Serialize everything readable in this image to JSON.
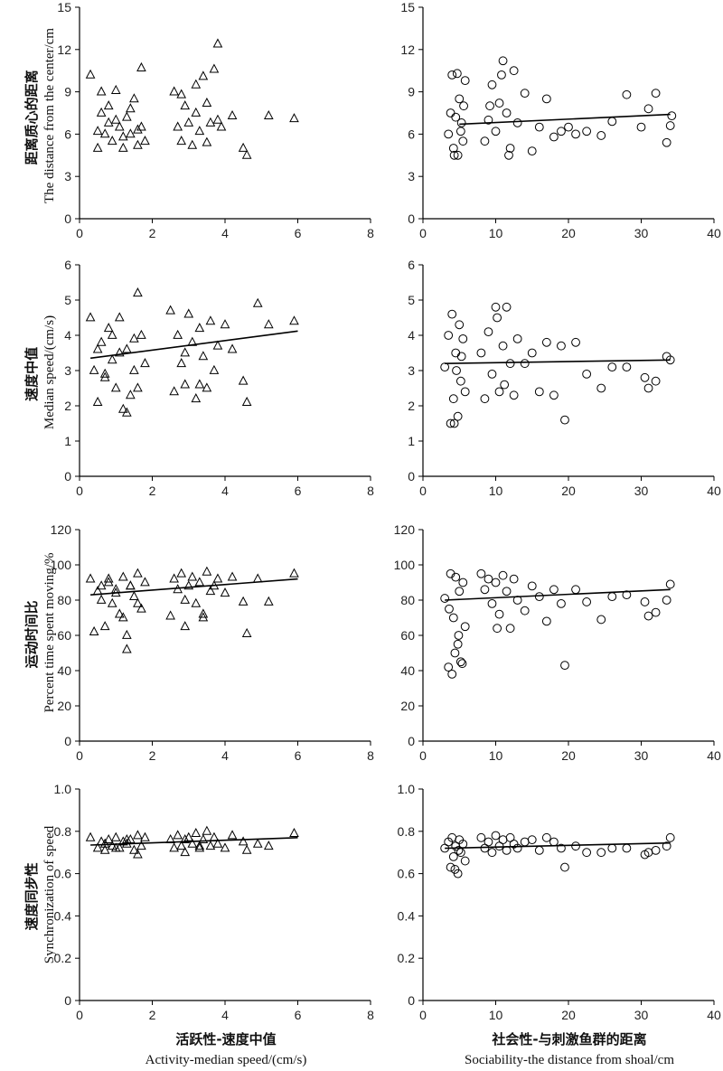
{
  "figure": {
    "xlabels": [
      {
        "zh": "活跃性-速度中值",
        "en": "Activity-median speed/(cm/s)"
      },
      {
        "zh": "社会性-与刺激鱼群的距离",
        "en": "Sociability-the distance from shoal/cm"
      }
    ],
    "ylabels": [
      {
        "zh": "距离质心的距离",
        "en": "The distance from the center/cm"
      },
      {
        "zh": "速度中值",
        "en": "Median speed/(cm/s)"
      },
      {
        "zh": "运动时间比",
        "en": "Percent time spent moving/%"
      },
      {
        "zh": "速度同步性",
        "en": "Synchronization of speed"
      }
    ]
  },
  "chart_data": [
    {
      "type": "scatter",
      "row": 0,
      "col": 0,
      "marker": "triangle",
      "xlim": [
        0,
        8
      ],
      "xticks": [
        "0",
        "2",
        "4",
        "6",
        "8"
      ],
      "ylim": [
        0,
        15
      ],
      "yticks": [
        "0",
        "3",
        "6",
        "9",
        "12",
        "15"
      ],
      "series": [
        {
          "x": [
            0.3,
            0.5,
            0.5,
            0.6,
            0.7,
            0.8,
            0.9,
            1.0,
            1.1,
            1.2,
            1.3,
            1.4,
            1.5,
            1.6,
            1.7,
            1.8,
            0.6,
            0.8,
            1.0,
            1.2,
            1.4,
            1.6,
            1.7,
            2.6,
            2.7,
            2.8,
            2.9,
            3.0,
            3.1,
            3.2,
            3.3,
            3.4,
            3.5,
            3.6,
            3.7,
            3.8,
            3.8,
            3.9,
            4.2,
            4.5,
            4.6,
            5.2,
            5.9,
            2.8,
            3.2,
            3.5
          ],
          "y": [
            10.2,
            6.2,
            5.0,
            7.5,
            6.0,
            8.0,
            5.5,
            7.0,
            6.5,
            5.8,
            7.2,
            6.0,
            8.5,
            6.3,
            10.7,
            5.5,
            9.0,
            6.8,
            9.1,
            5.0,
            7.8,
            5.2,
            6.5,
            9.0,
            6.5,
            5.5,
            8.0,
            6.8,
            5.2,
            7.5,
            6.2,
            10.1,
            8.2,
            6.8,
            10.6,
            12.4,
            7.0,
            6.5,
            7.3,
            5.0,
            4.5,
            7.3,
            7.1,
            8.8,
            9.5,
            5.4
          ]
        }
      ],
      "trend": null
    },
    {
      "type": "scatter",
      "row": 0,
      "col": 1,
      "marker": "circle",
      "xlim": [
        0,
        40
      ],
      "xticks": [
        "0",
        "10",
        "20",
        "30",
        "40"
      ],
      "ylim": [
        0,
        15
      ],
      "yticks": [
        "0",
        "3",
        "6",
        "9",
        "12",
        "15"
      ],
      "series": [
        {
          "x": [
            3.5,
            4.0,
            4.2,
            4.5,
            4.8,
            5.0,
            5.2,
            5.5,
            5.8,
            3.8,
            4.3,
            4.7,
            5.3,
            5.6,
            8.5,
            9.0,
            9.5,
            10.0,
            10.5,
            11.0,
            11.5,
            12.0,
            13.0,
            14.0,
            15.0,
            16.0,
            17.0,
            18.0,
            19.0,
            20.0,
            21.0,
            22.5,
            24.5,
            26.0,
            28.0,
            30.0,
            31.0,
            32.0,
            33.5,
            34.0,
            34.2,
            10.8,
            11.8,
            9.2,
            12.5
          ],
          "y": [
            6.0,
            10.2,
            5.0,
            7.2,
            4.5,
            8.5,
            6.2,
            5.5,
            9.8,
            7.5,
            4.5,
            10.3,
            6.8,
            8.0,
            5.5,
            7.0,
            9.5,
            6.2,
            8.2,
            11.2,
            7.5,
            5.0,
            6.8,
            8.9,
            4.8,
            6.5,
            8.5,
            5.8,
            6.2,
            6.5,
            6.0,
            6.2,
            5.9,
            6.9,
            8.8,
            6.5,
            7.8,
            8.9,
            5.4,
            6.6,
            7.3,
            10.2,
            4.5,
            8.0,
            10.5
          ]
        }
      ],
      "trend": {
        "x": [
          5,
          34
        ],
        "y": [
          6.7,
          7.4
        ]
      }
    },
    {
      "type": "scatter",
      "row": 1,
      "col": 0,
      "marker": "triangle",
      "xlim": [
        0,
        8
      ],
      "xticks": [
        "0",
        "2",
        "4",
        "6",
        "8"
      ],
      "ylim": [
        0,
        6
      ],
      "yticks": [
        "0",
        "1",
        "2",
        "3",
        "4",
        "5",
        "6"
      ],
      "series": [
        {
          "x": [
            0.3,
            0.4,
            0.5,
            0.6,
            0.7,
            0.8,
            0.9,
            1.0,
            1.1,
            1.2,
            1.3,
            1.4,
            1.5,
            1.6,
            1.7,
            1.8,
            0.5,
            0.7,
            0.9,
            1.1,
            1.3,
            1.5,
            1.6,
            2.5,
            2.6,
            2.7,
            2.8,
            2.9,
            3.0,
            3.1,
            3.2,
            3.3,
            3.4,
            3.5,
            3.6,
            3.7,
            3.8,
            4.0,
            4.2,
            4.5,
            4.6,
            4.9,
            5.2,
            5.9,
            2.9,
            3.3
          ],
          "y": [
            4.5,
            3.0,
            2.1,
            3.8,
            2.9,
            4.2,
            3.3,
            2.5,
            4.5,
            1.9,
            3.6,
            2.3,
            3.0,
            5.2,
            4.0,
            3.2,
            3.6,
            2.8,
            4.0,
            3.5,
            1.8,
            3.9,
            2.5,
            4.7,
            2.4,
            4.0,
            3.2,
            2.6,
            4.6,
            3.8,
            2.2,
            4.2,
            3.4,
            2.5,
            4.4,
            3.0,
            3.7,
            4.3,
            3.6,
            2.7,
            2.1,
            4.9,
            4.3,
            4.4,
            3.5,
            2.6
          ]
        }
      ],
      "trend": {
        "x": [
          0.3,
          6.0
        ],
        "y": [
          3.35,
          4.12
        ]
      }
    },
    {
      "type": "scatter",
      "row": 1,
      "col": 1,
      "marker": "circle",
      "xlim": [
        0,
        40
      ],
      "xticks": [
        "0",
        "10",
        "20",
        "30",
        "40"
      ],
      "ylim": [
        0,
        6
      ],
      "yticks": [
        "0",
        "1",
        "2",
        "3",
        "4",
        "5",
        "6"
      ],
      "series": [
        {
          "x": [
            3.0,
            3.5,
            3.8,
            4.0,
            4.2,
            4.5,
            4.8,
            5.0,
            5.2,
            5.5,
            5.8,
            4.3,
            4.6,
            5.3,
            8.0,
            8.5,
            9.0,
            9.5,
            10.0,
            10.5,
            11.0,
            11.5,
            12.0,
            12.5,
            13.0,
            14.0,
            15.0,
            16.0,
            17.0,
            18.0,
            19.0,
            19.5,
            21.0,
            22.5,
            24.5,
            26.0,
            28.0,
            30.5,
            31.0,
            32.0,
            33.5,
            34.0,
            10.2,
            11.2
          ],
          "y": [
            3.1,
            4.0,
            1.5,
            4.6,
            2.2,
            3.5,
            1.7,
            4.3,
            2.7,
            3.9,
            2.4,
            1.5,
            3.0,
            3.4,
            3.5,
            2.2,
            4.1,
            2.9,
            4.8,
            2.4,
            3.7,
            4.8,
            3.2,
            2.3,
            3.9,
            3.2,
            3.5,
            2.4,
            3.8,
            2.3,
            3.7,
            1.6,
            3.8,
            2.9,
            2.5,
            3.1,
            3.1,
            2.8,
            2.5,
            2.7,
            3.4,
            3.3,
            4.5,
            2.6
          ]
        }
      ],
      "trend": {
        "x": [
          3,
          34
        ],
        "y": [
          3.2,
          3.3
        ]
      }
    },
    {
      "type": "scatter",
      "row": 2,
      "col": 0,
      "marker": "triangle",
      "xlim": [
        0,
        8
      ],
      "xticks": [
        "0",
        "2",
        "4",
        "6",
        "8"
      ],
      "ylim": [
        0,
        120
      ],
      "yticks": [
        "0",
        "20",
        "40",
        "60",
        "80",
        "100",
        "120"
      ],
      "series": [
        {
          "x": [
            0.3,
            0.4,
            0.5,
            0.6,
            0.7,
            0.8,
            0.9,
            1.0,
            1.1,
            1.2,
            1.3,
            1.4,
            1.5,
            1.6,
            1.7,
            1.8,
            0.6,
            0.8,
            1.0,
            1.2,
            1.4,
            1.6,
            2.5,
            2.6,
            2.7,
            2.8,
            2.9,
            3.0,
            3.1,
            3.2,
            3.3,
            3.4,
            3.5,
            3.6,
            3.7,
            3.8,
            4.0,
            4.2,
            4.5,
            4.6,
            4.9,
            5.2,
            5.9,
            1.3,
            2.9,
            3.4
          ],
          "y": [
            92,
            62,
            85,
            88,
            65,
            90,
            78,
            86,
            72,
            93,
            60,
            88,
            82,
            95,
            75,
            90,
            80,
            92,
            84,
            70,
            88,
            78,
            71,
            92,
            86,
            95,
            65,
            88,
            93,
            78,
            90,
            72,
            96,
            85,
            88,
            92,
            84,
            93,
            79,
            61,
            92,
            79,
            95,
            52,
            80,
            70
          ]
        }
      ],
      "trend": {
        "x": [
          0.3,
          6.0
        ],
        "y": [
          83,
          92
        ]
      }
    },
    {
      "type": "scatter",
      "row": 2,
      "col": 1,
      "marker": "circle",
      "xlim": [
        0,
        40
      ],
      "xticks": [
        "0",
        "10",
        "20",
        "30",
        "40"
      ],
      "ylim": [
        0,
        120
      ],
      "yticks": [
        "0",
        "20",
        "40",
        "60",
        "80",
        "100",
        "120"
      ],
      "series": [
        {
          "x": [
            3.0,
            3.5,
            3.8,
            4.0,
            4.2,
            4.5,
            4.8,
            5.0,
            5.2,
            5.5,
            5.8,
            3.6,
            4.4,
            4.9,
            5.4,
            8.0,
            8.5,
            9.0,
            9.5,
            10.0,
            10.5,
            11.0,
            11.5,
            12.0,
            12.5,
            13.0,
            14.0,
            15.0,
            16.0,
            17.0,
            18.0,
            19.0,
            19.5,
            21.0,
            22.5,
            24.5,
            26.0,
            28.0,
            30.5,
            31.0,
            32.0,
            33.5,
            34.0,
            10.2
          ],
          "y": [
            81,
            42,
            95,
            38,
            70,
            93,
            55,
            85,
            45,
            90,
            65,
            75,
            50,
            60,
            44,
            95,
            86,
            92,
            78,
            90,
            72,
            94,
            85,
            64,
            92,
            80,
            74,
            88,
            82,
            68,
            86,
            78,
            43,
            86,
            79,
            69,
            82,
            83,
            79,
            71,
            73,
            80,
            89,
            64
          ]
        }
      ],
      "trend": {
        "x": [
          3,
          34
        ],
        "y": [
          80,
          86
        ]
      }
    },
    {
      "type": "scatter",
      "row": 3,
      "col": 0,
      "marker": "triangle",
      "xlim": [
        0,
        8
      ],
      "xticks": [
        "0",
        "2",
        "4",
        "6",
        "8"
      ],
      "ylim": [
        0,
        1.0
      ],
      "yticks": [
        "0",
        "0.2",
        "0.4",
        "0.6",
        "0.8",
        "1.0"
      ],
      "series": [
        {
          "x": [
            0.3,
            0.5,
            0.6,
            0.7,
            0.8,
            0.9,
            1.0,
            1.1,
            1.2,
            1.3,
            1.4,
            1.5,
            1.6,
            1.7,
            1.8,
            0.7,
            1.0,
            1.3,
            1.6,
            2.5,
            2.6,
            2.7,
            2.8,
            2.9,
            3.0,
            3.1,
            3.2,
            3.3,
            3.4,
            3.5,
            3.6,
            3.7,
            3.8,
            4.0,
            4.2,
            4.5,
            4.6,
            4.9,
            5.2,
            5.9,
            2.9,
            3.3
          ],
          "y": [
            0.77,
            0.72,
            0.75,
            0.71,
            0.76,
            0.73,
            0.77,
            0.72,
            0.75,
            0.74,
            0.76,
            0.71,
            0.78,
            0.73,
            0.77,
            0.74,
            0.72,
            0.76,
            0.69,
            0.76,
            0.72,
            0.78,
            0.73,
            0.7,
            0.77,
            0.74,
            0.79,
            0.72,
            0.76,
            0.8,
            0.73,
            0.77,
            0.74,
            0.72,
            0.78,
            0.75,
            0.71,
            0.74,
            0.73,
            0.79,
            0.76,
            0.73
          ]
        }
      ],
      "trend": {
        "x": [
          0.3,
          6.0
        ],
        "y": [
          0.735,
          0.77
        ]
      }
    },
    {
      "type": "scatter",
      "row": 3,
      "col": 1,
      "marker": "circle",
      "xlim": [
        0,
        40
      ],
      "xticks": [
        "0",
        "10",
        "20",
        "30",
        "40"
      ],
      "ylim": [
        0,
        1.0
      ],
      "yticks": [
        "0",
        "0.2",
        "0.4",
        "0.6",
        "0.8",
        "1.0"
      ],
      "series": [
        {
          "x": [
            3.0,
            3.5,
            3.8,
            4.0,
            4.2,
            4.5,
            4.8,
            5.0,
            5.2,
            5.5,
            5.8,
            4.4,
            4.9,
            8.0,
            8.5,
            9.0,
            9.5,
            10.0,
            10.5,
            11.0,
            11.5,
            12.0,
            12.5,
            13.0,
            14.0,
            15.0,
            16.0,
            17.0,
            18.0,
            19.0,
            19.5,
            21.0,
            22.5,
            24.5,
            26.0,
            28.0,
            30.5,
            31.0,
            32.0,
            33.5,
            34.0
          ],
          "y": [
            0.72,
            0.75,
            0.63,
            0.77,
            0.68,
            0.73,
            0.6,
            0.76,
            0.7,
            0.74,
            0.66,
            0.62,
            0.71,
            0.77,
            0.72,
            0.75,
            0.7,
            0.78,
            0.73,
            0.76,
            0.71,
            0.77,
            0.74,
            0.72,
            0.75,
            0.76,
            0.71,
            0.77,
            0.75,
            0.72,
            0.63,
            0.73,
            0.7,
            0.7,
            0.72,
            0.72,
            0.69,
            0.7,
            0.71,
            0.73,
            0.77
          ]
        }
      ],
      "trend": {
        "x": [
          3,
          34
        ],
        "y": [
          0.72,
          0.745
        ]
      }
    }
  ]
}
